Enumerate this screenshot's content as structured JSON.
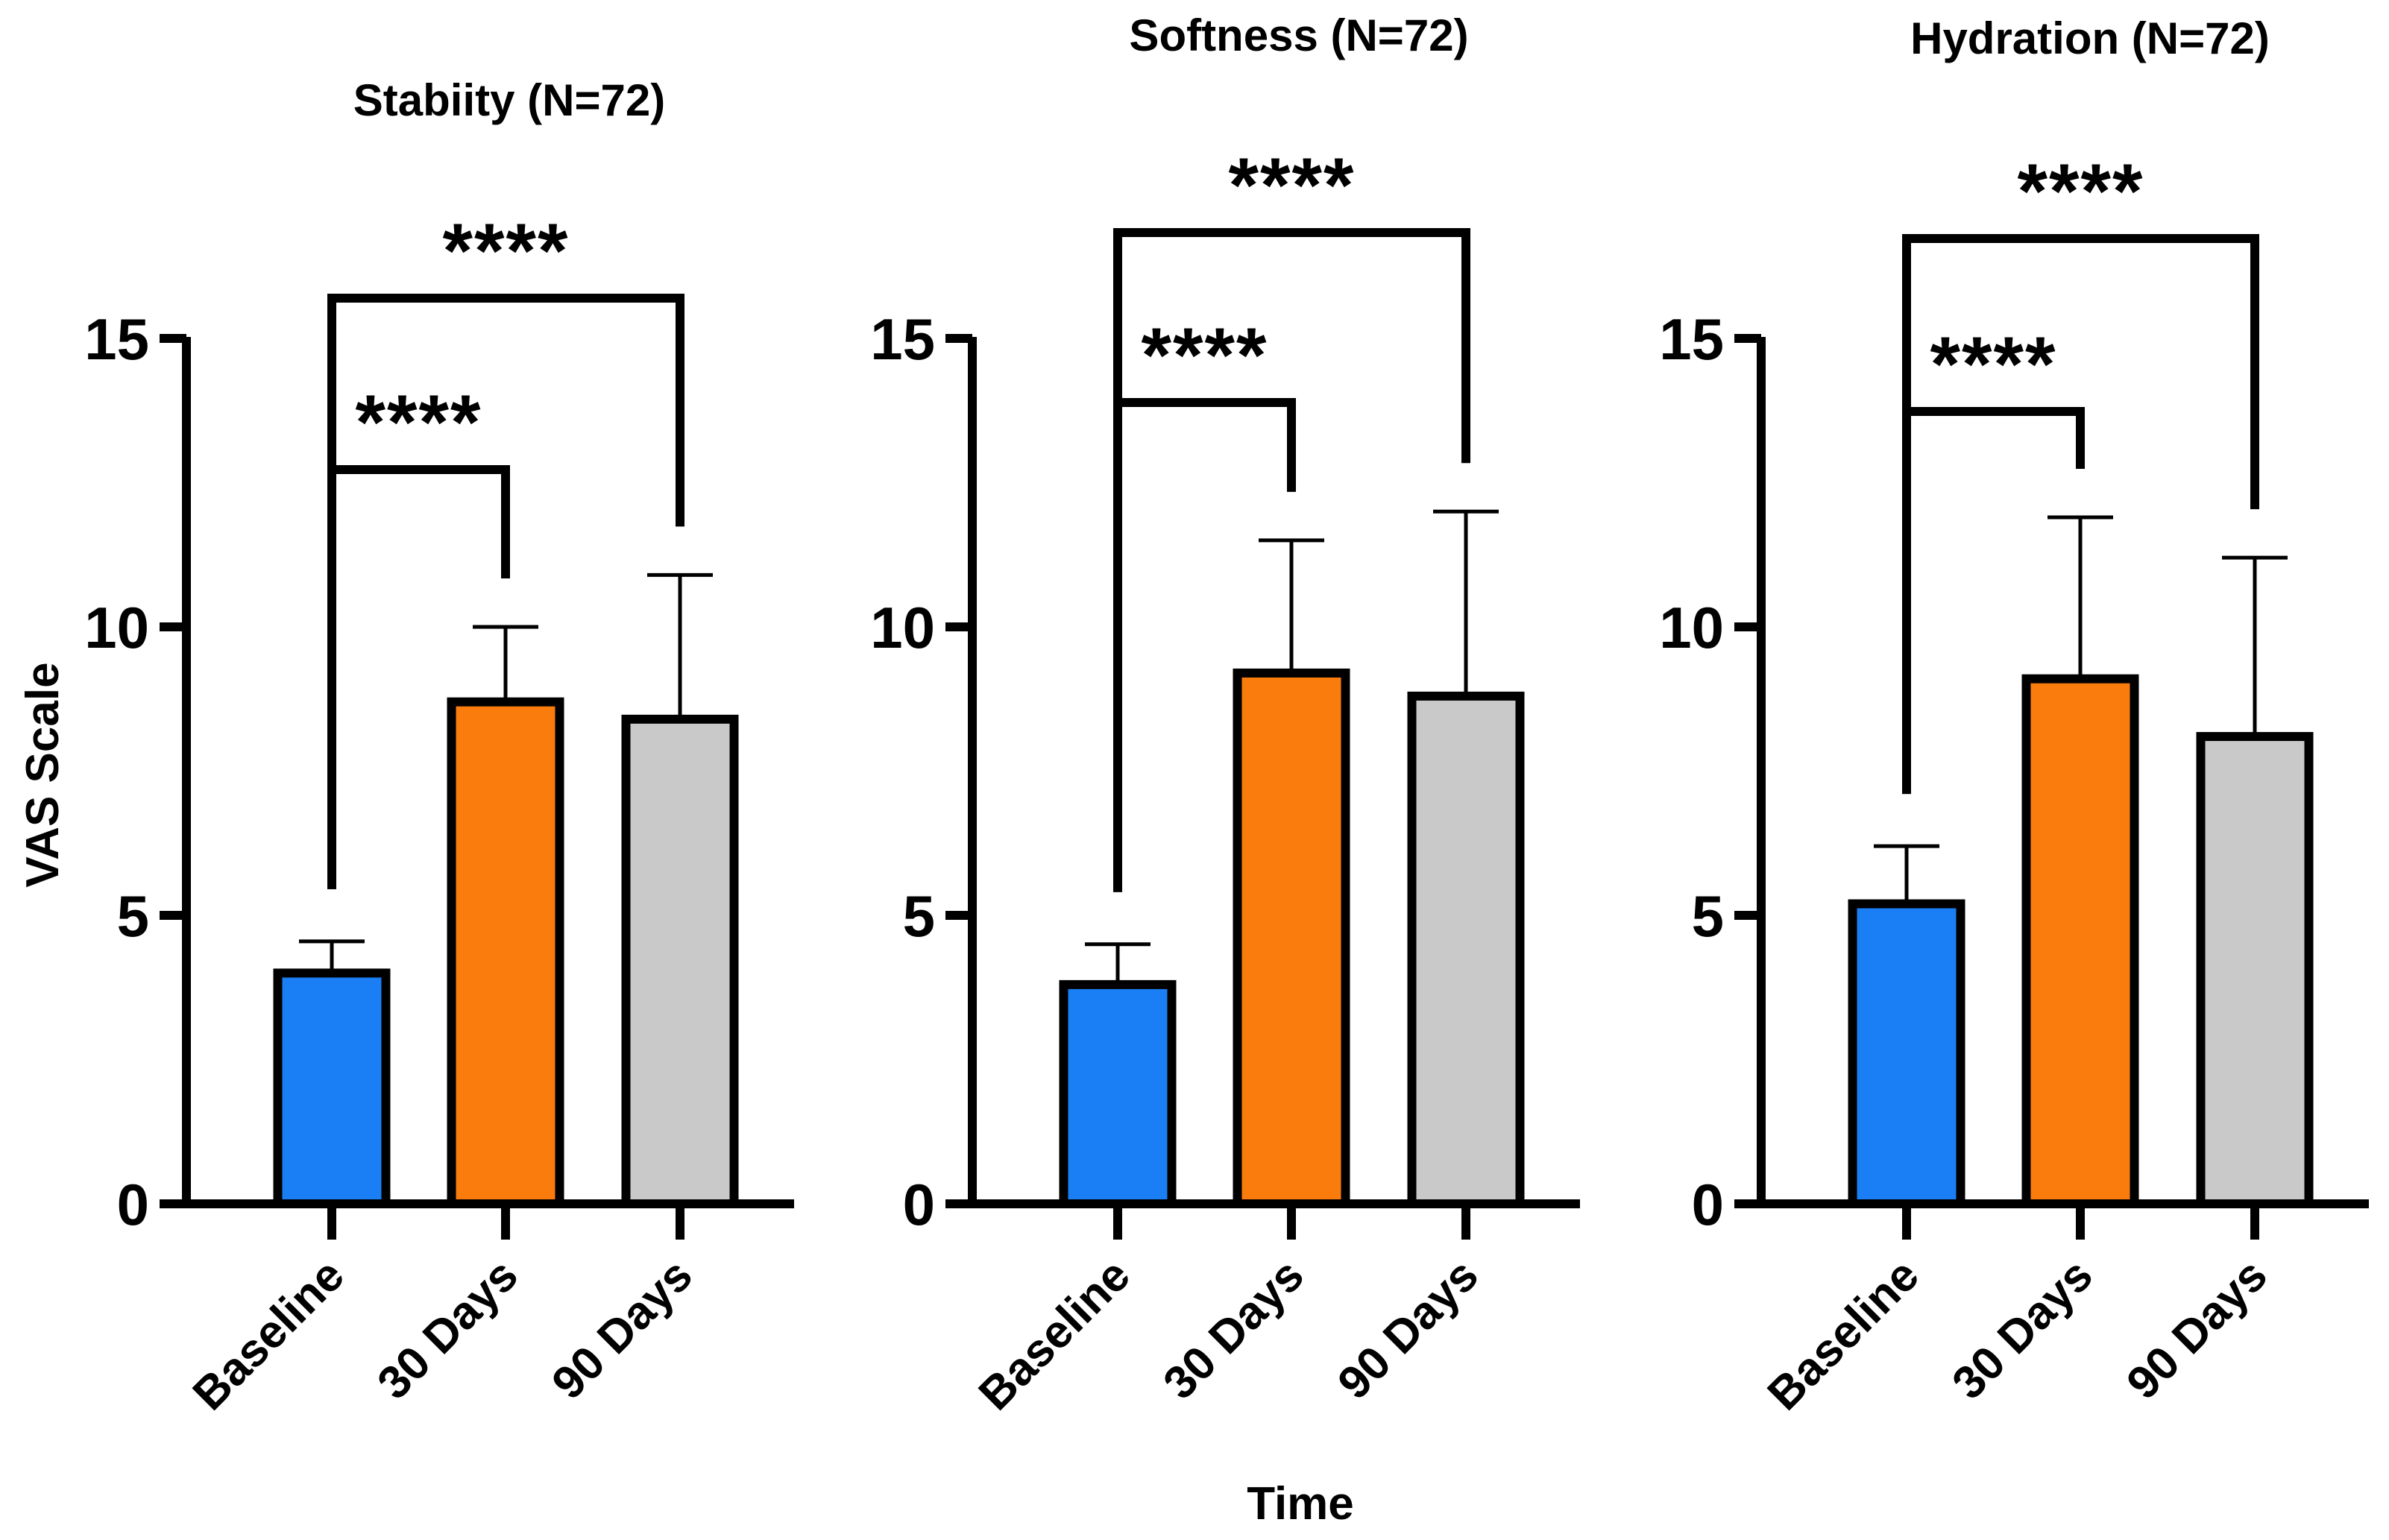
{
  "chart_data": [
    {
      "type": "bar",
      "title": "Stabiity (N=72)",
      "categories": [
        "Baseline",
        "30 Days",
        "90 Days"
      ],
      "values": [
        4.0,
        8.7,
        8.4
      ],
      "errors": [
        0.55,
        1.3,
        2.5
      ],
      "colors": [
        "#1a7ff5",
        "#f97c0d",
        "#c9c9c9"
      ],
      "ylim": [
        0,
        15
      ],
      "yticks": [
        "0",
        "5",
        "10",
        "15"
      ],
      "ylabel": "VAS Scale",
      "xlabel": "",
      "significance": [
        {
          "from": 0,
          "to": 1,
          "label": "****"
        },
        {
          "from": 0,
          "to": 2,
          "label": "****"
        }
      ]
    },
    {
      "type": "bar",
      "title": "Softness (N=72)",
      "categories": [
        "Baseline",
        "30 Days",
        "90 Days"
      ],
      "values": [
        3.8,
        9.2,
        8.8
      ],
      "errors": [
        0.7,
        2.3,
        3.2
      ],
      "colors": [
        "#1a7ff5",
        "#f97c0d",
        "#c9c9c9"
      ],
      "ylim": [
        0,
        15
      ],
      "yticks": [
        "0",
        "5",
        "10",
        "15"
      ],
      "ylabel": "",
      "xlabel": "Time",
      "significance": [
        {
          "from": 0,
          "to": 1,
          "label": "****"
        },
        {
          "from": 0,
          "to": 2,
          "label": "****"
        }
      ]
    },
    {
      "type": "bar",
      "title": "Hydration (N=72)",
      "categories": [
        "Baseline",
        "30 Days",
        "90 Days"
      ],
      "values": [
        5.2,
        9.1,
        8.1
      ],
      "errors": [
        1.0,
        2.8,
        3.1
      ],
      "colors": [
        "#1a7ff5",
        "#f97c0d",
        "#c9c9c9"
      ],
      "ylim": [
        0,
        15
      ],
      "yticks": [
        "0",
        "5",
        "10",
        "15"
      ],
      "ylabel": "",
      "xlabel": "",
      "significance": [
        {
          "from": 0,
          "to": 1,
          "label": "****"
        },
        {
          "from": 0,
          "to": 2,
          "label": "****"
        }
      ]
    }
  ]
}
